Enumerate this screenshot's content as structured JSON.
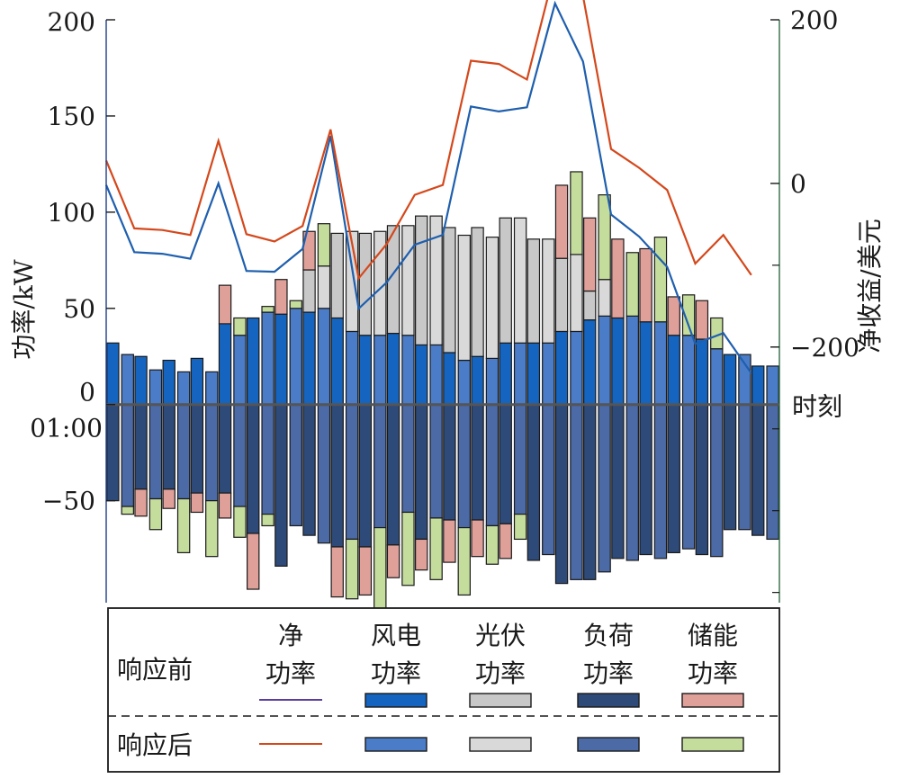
{
  "chart_data": {
    "type": "bar",
    "x_axis_label": "时刻",
    "x_tick_labels": [
      "01:00"
    ],
    "y_left": {
      "label": "功率/kW",
      "ylim": [
        -103,
        200
      ],
      "ticks": [
        200,
        150,
        100,
        50,
        0,
        -50
      ],
      "tick_labels": [
        "200",
        "150",
        "100",
        "50",
        "0",
        "−50"
      ]
    },
    "y_right": {
      "label": "净收益/美元",
      "ylim": [
        -512.5,
        200
      ],
      "ticks": [
        200,
        0,
        -200
      ],
      "tick_labels": [
        "200",
        "0",
        "−200"
      ],
      "minor_ticks": [
        -100,
        -300,
        -400,
        -500
      ]
    },
    "hours": [
      1,
      2,
      3,
      4,
      5,
      6,
      7,
      8,
      9,
      10,
      11,
      12,
      13,
      14,
      15,
      16,
      17,
      18,
      19,
      20,
      21,
      22,
      23,
      24
    ],
    "before": {
      "wind": [
        32,
        25,
        23,
        24,
        42,
        45,
        47,
        48,
        45,
        36,
        37,
        31,
        27,
        25,
        32,
        32,
        38,
        44,
        45,
        43,
        36,
        34,
        26,
        20
      ],
      "pv": [
        0,
        0,
        0,
        0,
        0,
        0,
        0,
        22,
        44,
        53,
        56,
        67,
        65,
        67,
        65,
        54,
        38,
        15,
        0,
        0,
        0,
        0,
        0,
        0
      ],
      "storage_charge": [
        0,
        0,
        0,
        0,
        20,
        0,
        18,
        20,
        0,
        0,
        0,
        0,
        0,
        0,
        0,
        0,
        38,
        38,
        41,
        38,
        20,
        20,
        0,
        0
      ],
      "load": [
        -50,
        -44,
        -44,
        -46,
        -46,
        -67,
        -84,
        -68,
        -74,
        -74,
        -73,
        -70,
        -60,
        -60,
        -62,
        -81,
        -93,
        -91,
        -80,
        -78,
        -77,
        -78,
        -65,
        -68
      ],
      "storage_discharge": [
        0,
        -14,
        -10,
        -10,
        -13,
        -29,
        0,
        0,
        -26,
        -25,
        -17,
        -16,
        -22,
        -19,
        -18,
        0,
        0,
        0,
        0,
        0,
        0,
        0,
        0,
        0
      ]
    },
    "after": {
      "wind": [
        26,
        18,
        17,
        17,
        36,
        48,
        50,
        50,
        38,
        36,
        36,
        31,
        23,
        24,
        32,
        32,
        38,
        46,
        46,
        43,
        36,
        29,
        26,
        20
      ],
      "pv": [
        0,
        0,
        0,
        0,
        0,
        0,
        0,
        22,
        52,
        54,
        57,
        67,
        65,
        63,
        65,
        54,
        40,
        19,
        0,
        0,
        0,
        0,
        0,
        0
      ],
      "storage_charge": [
        0,
        0,
        0,
        0,
        9,
        3,
        4,
        22,
        0,
        0,
        0,
        0,
        0,
        0,
        0,
        0,
        43,
        44,
        33,
        44,
        21,
        16,
        0,
        0
      ],
      "load": [
        -53,
        -49,
        -49,
        -50,
        -53,
        -57,
        -63,
        -72,
        -70,
        -64,
        -56,
        -59,
        -64,
        -63,
        -57,
        -78,
        -91,
        -87,
        -81,
        -80,
        -75,
        -79,
        -65,
        -70
      ],
      "storage_discharge": [
        -4,
        -16,
        -28,
        -29,
        -16,
        -6,
        0,
        0,
        -31,
        -42,
        -38,
        -32,
        -35,
        -20,
        -13,
        0,
        0,
        0,
        0,
        0,
        0,
        0,
        0,
        0
      ]
    },
    "net_revenue_before": [
      -2,
      -84,
      -86,
      -92,
      0,
      -107,
      -108,
      -80,
      58,
      -153,
      -121,
      -75,
      -63,
      94,
      88,
      93,
      220,
      149,
      -38,
      -65,
      -102,
      -196,
      -183,
      -232
    ],
    "net_revenue_after": [
      28,
      -55,
      -57,
      -63,
      52,
      -62,
      -71,
      -52,
      66,
      -116,
      -74,
      -14,
      -2,
      150,
      146,
      127,
      262,
      229,
      42,
      19,
      -8,
      -98,
      -63,
      -112
    ],
    "series_colors": {
      "net_before": "#1f5fae",
      "net_after": "#d4481c",
      "wind_before": "#1565c0",
      "wind_after": "#4a7cc8",
      "pv_before": "#c8c8c8",
      "pv_after": "#d9d9d9",
      "load_before": "#2e4a78",
      "load_after": "#4b6aa6",
      "storage_before": "#e0a09a",
      "storage_after": "#c5dd9c",
      "right_axis": "#2f6b43"
    },
    "legend": {
      "row_before_label": "响应前",
      "row_after_label": "响应后",
      "columns": [
        {
          "key": "net",
          "label_line1": "净",
          "label_line2": "功率",
          "before_color": "#5b3da0",
          "after_color": "#d4481c",
          "kind": "line"
        },
        {
          "key": "wind",
          "label_line1": "风电",
          "label_line2": "功率",
          "before_color": "#1565c0",
          "after_color": "#4a7cc8",
          "kind": "patch"
        },
        {
          "key": "pv",
          "label_line1": "光伏",
          "label_line2": "功率",
          "before_color": "#c8c8c8",
          "after_color": "#d9d9d9",
          "kind": "patch"
        },
        {
          "key": "load",
          "label_line1": "负荷",
          "label_line2": "功率",
          "before_color": "#2e4a78",
          "after_color": "#4b6aa6",
          "kind": "patch"
        },
        {
          "key": "storage",
          "label_line1": "储能",
          "label_line2": "功率",
          "before_color": "#e0a09a",
          "after_color": "#c5dd9c",
          "kind": "patch"
        }
      ]
    }
  }
}
